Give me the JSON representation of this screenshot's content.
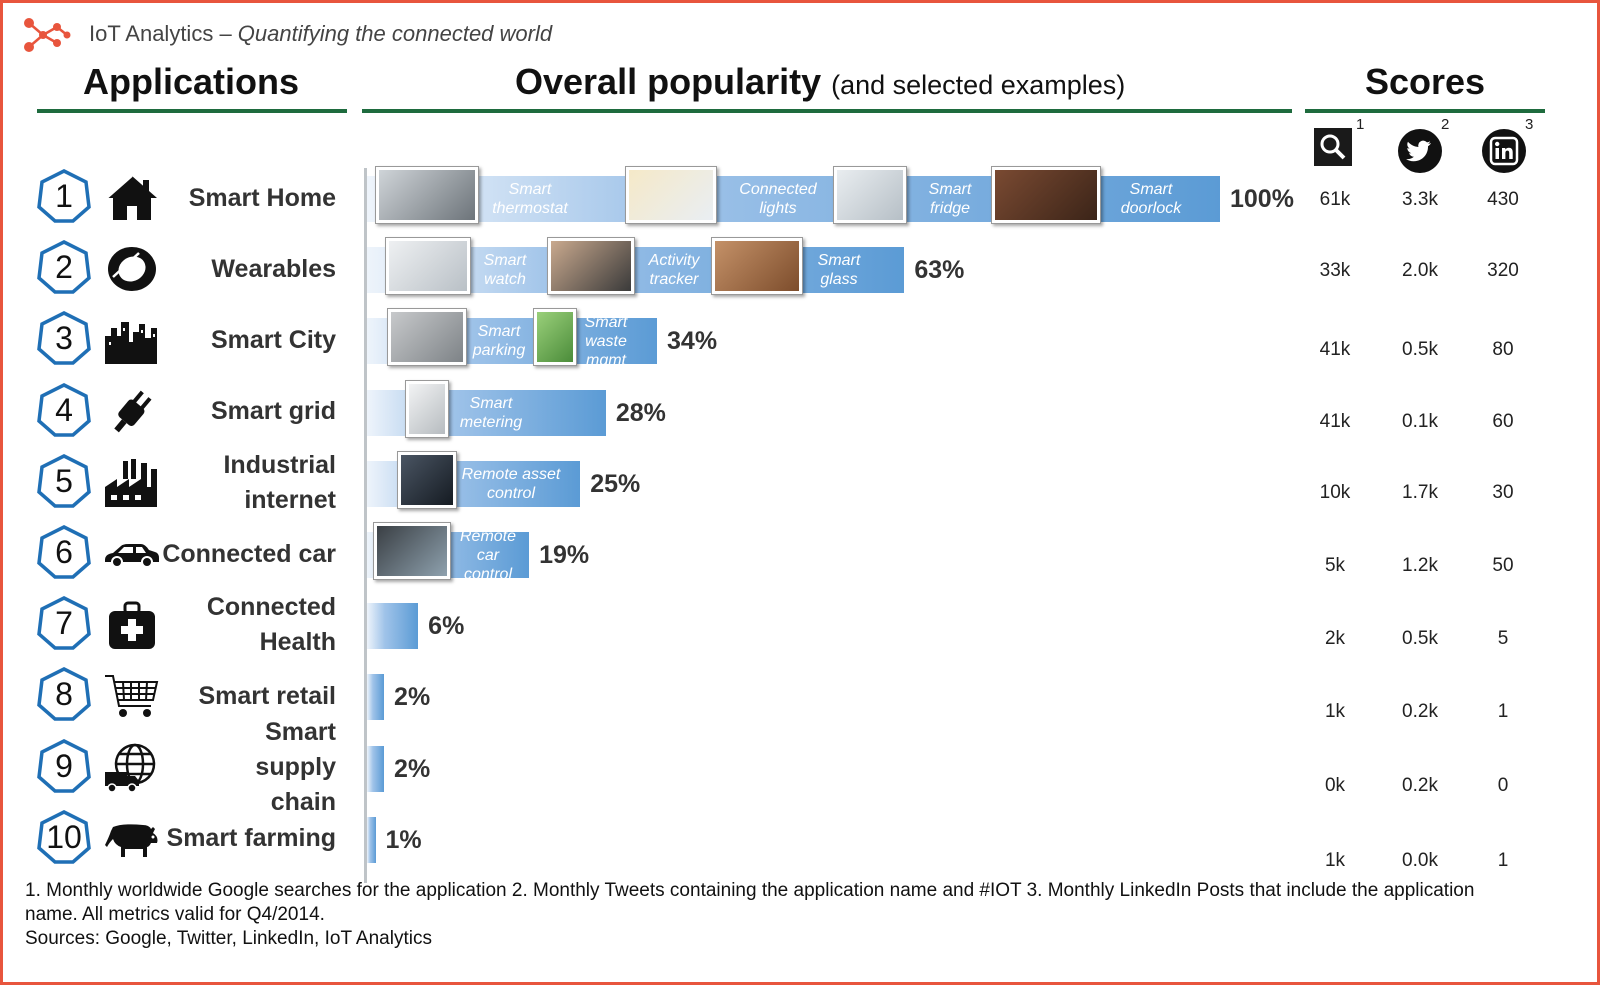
{
  "header": {
    "brand": "IoT Analytics",
    "dash": " – ",
    "tagline": "Quantifying the connected world"
  },
  "sections": {
    "applications": "Applications",
    "popularity": "Overall popularity",
    "popularity_sub": "(and selected examples)",
    "scores": "Scores"
  },
  "score_heads": [
    {
      "icon": "search-icon",
      "sup": "1"
    },
    {
      "icon": "twitter-icon",
      "sup": "2"
    },
    {
      "icon": "linkedin-icon",
      "sup": "3"
    }
  ],
  "chart_data": {
    "type": "bar",
    "categories": [
      "Smart Home",
      "Wearables",
      "Smart City",
      "Smart grid",
      "Industrial internet",
      "Connected car",
      "Connected Health",
      "Smart retail",
      "Smart supply chain",
      "Smart farming"
    ],
    "values": [
      100,
      63,
      34,
      28,
      25,
      19,
      6,
      2,
      2,
      1
    ],
    "value_labels": [
      "100%",
      "63%",
      "34%",
      "28%",
      "25%",
      "19%",
      "6%",
      "2%",
      "2%",
      "1%"
    ]
  },
  "rows": [
    {
      "rank": "1",
      "name": "Smart Home",
      "icon": "house-icon",
      "scores": [
        "61k",
        "3.3k",
        "430"
      ],
      "examples": [
        {
          "label": "Smart thermostat",
          "icon": "thermostat-photo"
        },
        {
          "label": "Connected lights",
          "icon": "bulbs-photo"
        },
        {
          "label": "Smart fridge",
          "icon": "fridge-photo"
        },
        {
          "label": "Smart doorlock",
          "icon": "doorlock-photo"
        }
      ]
    },
    {
      "rank": "2",
      "name": "Wearables",
      "icon": "wristband-icon",
      "scores": [
        "33k",
        "2.0k",
        "320"
      ],
      "examples": [
        {
          "label": "Smart watch",
          "icon": "watch-photo"
        },
        {
          "label": "Activity tracker",
          "icon": "tracker-photo"
        },
        {
          "label": "Smart glass",
          "icon": "glass-photo"
        }
      ]
    },
    {
      "rank": "3",
      "name": "Smart City",
      "icon": "city-icon",
      "scores": [
        "41k",
        "0.5k",
        "80"
      ],
      "examples": [
        {
          "label": "Smart parking",
          "icon": "parking-photo"
        },
        {
          "label": "Smart waste mgmt",
          "icon": "waste-photo"
        }
      ]
    },
    {
      "rank": "4",
      "name": "Smart grid",
      "icon": "plug-icon",
      "scores": [
        "41k",
        "0.1k",
        "60"
      ],
      "examples": [
        {
          "label": "Smart metering",
          "icon": "meter-photo"
        }
      ]
    },
    {
      "rank": "5",
      "name": "Industrial internet",
      "icon": "factory-icon",
      "scores": [
        "10k",
        "1.7k",
        "30"
      ],
      "examples": [
        {
          "label": "Remote asset control",
          "icon": "control-room-photo"
        }
      ]
    },
    {
      "rank": "6",
      "name": "Connected car",
      "icon": "car-icon",
      "scores": [
        "5k",
        "1.2k",
        "50"
      ],
      "examples": [
        {
          "label": "Remote car control",
          "icon": "car-app-photo"
        }
      ]
    },
    {
      "rank": "7",
      "name": "Connected Health",
      "icon": "medical-kit-icon",
      "scores": [
        "2k",
        "0.5k",
        "5"
      ],
      "examples": []
    },
    {
      "rank": "8",
      "name": "Smart retail",
      "icon": "cart-icon",
      "scores": [
        "1k",
        "0.2k",
        "1"
      ],
      "examples": []
    },
    {
      "rank": "9",
      "name": "Smart supply chain",
      "icon": "globe-truck-icon",
      "scores": [
        "0k",
        "0.2k",
        "0"
      ],
      "examples": []
    },
    {
      "rank": "10",
      "name": "Smart farming",
      "icon": "cow-icon",
      "scores": [
        "1k",
        "0.0k",
        "1"
      ],
      "examples": []
    }
  ],
  "footnote": {
    "line1": "1. Monthly worldwide Google searches for the application  2. Monthly Tweets containing the application name and #IOT  3. Monthly LinkedIn Posts that include the application name.  All metrics valid for Q4/2014.",
    "line2": "Sources: Google, Twitter, LinkedIn, IoT Analytics"
  }
}
